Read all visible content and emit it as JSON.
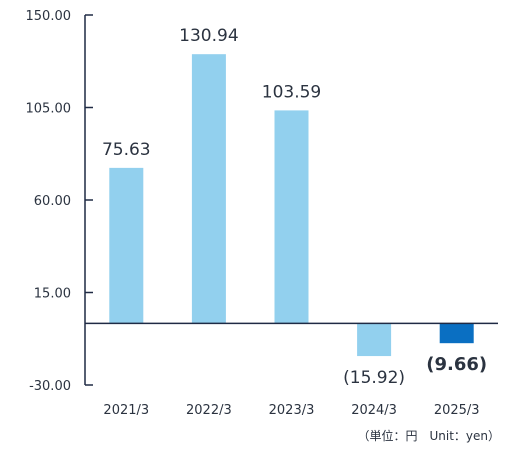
{
  "chart_data": {
    "type": "bar",
    "categories": [
      "2021/3",
      "2022/3",
      "2023/3",
      "2024/3",
      "2025/3"
    ],
    "values": [
      75.63,
      130.94,
      103.59,
      -15.92,
      -9.66
    ],
    "value_labels": [
      "75.63",
      "130.94",
      "103.59",
      "(15.92)",
      "(9.66)"
    ],
    "highlight_index": 4,
    "yticks": [
      "150.00",
      "105.00",
      "60.00",
      "15.00",
      "-30.00"
    ],
    "ytick_values": [
      150,
      105,
      60,
      15,
      -30
    ],
    "ylim": [
      -30,
      150
    ],
    "unit_note": "（単位：円　Unit：yen）",
    "colors": {
      "bar": "#92d0ee",
      "highlight": "#0a6fc2",
      "axis": "#1f2a44",
      "text": "#2b3340"
    },
    "grid": false,
    "title": "",
    "xlabel": "",
    "ylabel": ""
  }
}
